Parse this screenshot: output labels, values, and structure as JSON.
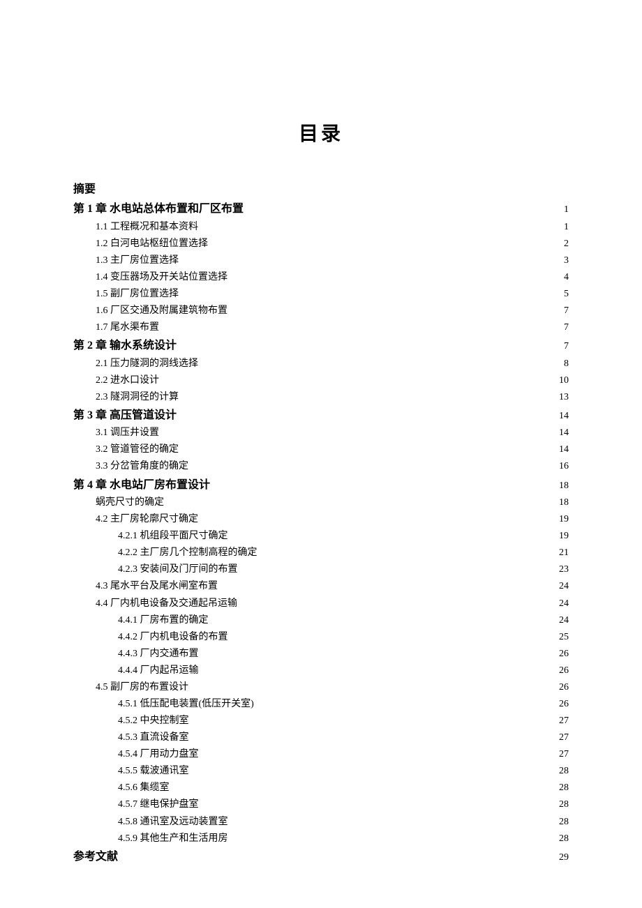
{
  "title": "目录",
  "colors": {
    "background": "#ffffff",
    "text": "#000000"
  },
  "typography": {
    "title_fontsize": 28,
    "level0_fontsize": 16,
    "level1_fontsize": 14,
    "level2_fontsize": 14,
    "font_family": "SimSun"
  },
  "toc": [
    {
      "level": 0,
      "label": "摘要",
      "page": null
    },
    {
      "level": 0,
      "label": "第 1 章  水电站总体布置和厂区布置",
      "page": "1"
    },
    {
      "level": 1,
      "label": "1.1  工程概况和基本资料",
      "page": "1"
    },
    {
      "level": 1,
      "label": "1.2  白河电站枢纽位置选择",
      "page": "2"
    },
    {
      "level": 1,
      "label": "1.3  主厂房位置选择",
      "page": "3"
    },
    {
      "level": 1,
      "label": "1.4  变压器场及开关站位置选择",
      "page": "4"
    },
    {
      "level": 1,
      "label": "1.5  副厂房位置选择",
      "page": "5"
    },
    {
      "level": 1,
      "label": "1.6  厂区交通及附属建筑物布置",
      "page": "7"
    },
    {
      "level": 1,
      "label": "1.7  尾水渠布置",
      "page": "7"
    },
    {
      "level": 0,
      "label": "第 2 章  输水系统设计",
      "page": "7"
    },
    {
      "level": 1,
      "label": "2.1  压力隧洞的洞线选择",
      "page": "8"
    },
    {
      "level": 1,
      "label": "2.2  进水口设计",
      "page": "10"
    },
    {
      "level": 1,
      "label": "2.3  隧洞洞径的计算",
      "page": "13"
    },
    {
      "level": 0,
      "label": "第 3 章  高压管道设计",
      "page": "14"
    },
    {
      "level": 1,
      "label": "3.1  调压井设置",
      "page": "14"
    },
    {
      "level": 1,
      "label": "3.2  管道管径的确定",
      "page": "14"
    },
    {
      "level": 1,
      "label": "3.3  分岔管角度的确定",
      "page": "16"
    },
    {
      "level": 0,
      "label": "第 4 章  水电站厂房布置设计",
      "page": "18"
    },
    {
      "level": 1,
      "label": "蜗壳尺寸的确定",
      "page": "18"
    },
    {
      "level": 1,
      "label": "4.2  主厂房轮廓尺寸确定",
      "page": "19"
    },
    {
      "level": 2,
      "label": "4.2.1  机组段平面尺寸确定",
      "page": "19"
    },
    {
      "level": 2,
      "label": "4.2.2  主厂房几个控制高程的确定",
      "page": "21"
    },
    {
      "level": 2,
      "label": "4.2.3  安装间及门厅间的布置",
      "page": "23"
    },
    {
      "level": 1,
      "label": "4.3  尾水平台及尾水闸室布置",
      "page": "24"
    },
    {
      "level": 1,
      "label": "4.4  厂内机电设备及交通起吊运输",
      "page": "24"
    },
    {
      "level": 2,
      "label": "4.4.1  厂房布置的确定",
      "page": "24"
    },
    {
      "level": 2,
      "label": "4.4.2  厂内机电设备的布置",
      "page": "25"
    },
    {
      "level": 2,
      "label": "4.4.3  厂内交通布置",
      "page": "26"
    },
    {
      "level": 2,
      "label": "4.4.4  厂内起吊运输",
      "page": "26"
    },
    {
      "level": 1,
      "label": "4.5  副厂房的布置设计",
      "page": "26"
    },
    {
      "level": 2,
      "label": "4.5.1  低压配电装置(低压开关室)",
      "page": "26"
    },
    {
      "level": 2,
      "label": "4.5.2  中央控制室",
      "page": "27"
    },
    {
      "level": 2,
      "label": "4.5.3  直流设备室",
      "page": "27"
    },
    {
      "level": 2,
      "label": "4.5.4  厂用动力盘室",
      "page": "27"
    },
    {
      "level": 2,
      "label": "4.5.5  载波通讯室",
      "page": "28"
    },
    {
      "level": 2,
      "label": "4.5.6  集缆室",
      "page": "28"
    },
    {
      "level": 2,
      "label": "4.5.7  继电保护盘室",
      "page": "28"
    },
    {
      "level": 2,
      "label": "4.5.8  通讯室及远动装置室",
      "page": "28"
    },
    {
      "level": 2,
      "label": "4.5.9  其他生产和生活用房",
      "page": "28"
    },
    {
      "level": 0,
      "label": "参考文献",
      "page": "29"
    }
  ]
}
